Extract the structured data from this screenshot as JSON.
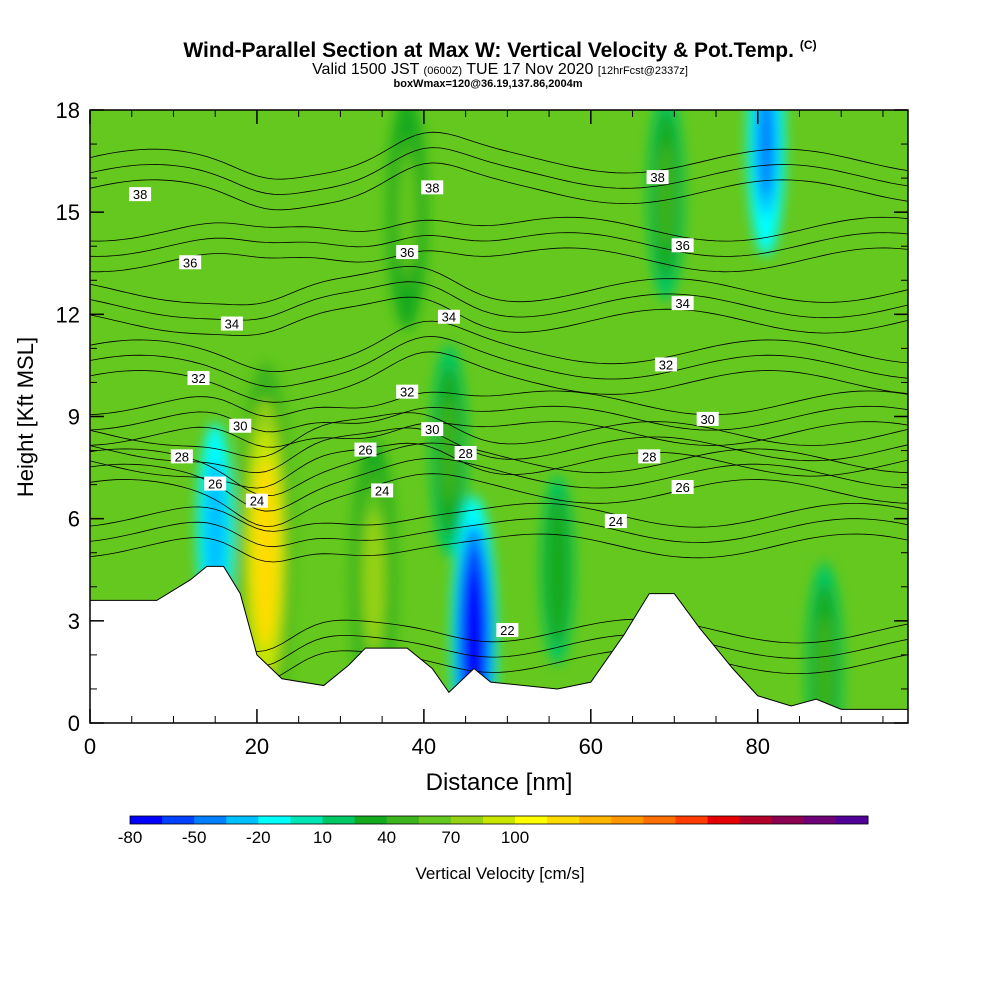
{
  "header": {
    "title": "Wind-Parallel Section at Max W: Vertical Velocity & Pot.Temp.",
    "copyright": "(C)",
    "valid_prefix": "Valid 1500 JST",
    "valid_utc": "(0600Z)",
    "valid_date": "TUE 17 Nov 2020",
    "forecast": "[12hrFcst@2337z]",
    "box_info": "boxWmax=120@36.19,137.86,2004m"
  },
  "chart_data": {
    "type": "heatmap",
    "title": "Wind-Parallel Section at Max W: Vertical Velocity & Pot.Temp.",
    "xlabel": "Distance [nm]",
    "ylabel": "Height [Kft MSL]",
    "xlim": [
      0,
      98
    ],
    "ylim": [
      0,
      18
    ],
    "x_ticks": [
      "0",
      "20",
      "40",
      "60",
      "80"
    ],
    "y_ticks": [
      "0",
      "3",
      "6",
      "9",
      "12",
      "15",
      "18"
    ],
    "colorbar": {
      "label": "Vertical Velocity [cm/s]",
      "tick_labels": [
        "-80",
        "-50",
        "-20",
        "10",
        "40",
        "70",
        "100"
      ],
      "colors": [
        "#0000ff",
        "#0040ff",
        "#0080ff",
        "#00c0ff",
        "#00ffff",
        "#00e6b4",
        "#00c864",
        "#14aa1e",
        "#3cb41e",
        "#64c81e",
        "#96d214",
        "#c8e600",
        "#ffff00",
        "#ffdc00",
        "#ffb400",
        "#ff9600",
        "#ff6e00",
        "#ff3c00",
        "#e60000",
        "#b40028",
        "#8c0050",
        "#6e0078",
        "#500096"
      ]
    },
    "terrain_kft": [
      {
        "x": 0,
        "y": 3.6
      },
      {
        "x": 8,
        "y": 3.6
      },
      {
        "x": 12,
        "y": 4.2
      },
      {
        "x": 14,
        "y": 4.6
      },
      {
        "x": 16,
        "y": 4.6
      },
      {
        "x": 18,
        "y": 3.8
      },
      {
        "x": 20,
        "y": 2.0
      },
      {
        "x": 23,
        "y": 1.3
      },
      {
        "x": 28,
        "y": 1.1
      },
      {
        "x": 31,
        "y": 1.7
      },
      {
        "x": 33,
        "y": 2.2
      },
      {
        "x": 38,
        "y": 2.2
      },
      {
        "x": 41,
        "y": 1.6
      },
      {
        "x": 43,
        "y": 0.9
      },
      {
        "x": 46,
        "y": 1.6
      },
      {
        "x": 48,
        "y": 1.2
      },
      {
        "x": 56,
        "y": 1.0
      },
      {
        "x": 60,
        "y": 1.2
      },
      {
        "x": 64,
        "y": 2.6
      },
      {
        "x": 67,
        "y": 3.8
      },
      {
        "x": 70,
        "y": 3.8
      },
      {
        "x": 73,
        "y": 2.8
      },
      {
        "x": 77,
        "y": 1.6
      },
      {
        "x": 80,
        "y": 0.8
      },
      {
        "x": 84,
        "y": 0.5
      },
      {
        "x": 87,
        "y": 0.7
      },
      {
        "x": 90,
        "y": 0.4
      },
      {
        "x": 98,
        "y": 0.4
      }
    ],
    "velocity_features_cm_s": [
      {
        "x": 21,
        "y": 5.0,
        "value": 115
      },
      {
        "x": 34,
        "y": 4.2,
        "value": 70
      },
      {
        "x": 38,
        "y": 15.0,
        "value": 50
      },
      {
        "x": 46,
        "y": 2.4,
        "value": -75
      },
      {
        "x": 15,
        "y": 5.7,
        "value": -40
      },
      {
        "x": 69,
        "y": 15.5,
        "value": 40
      },
      {
        "x": 81,
        "y": 17.0,
        "value": -45
      },
      {
        "x": 43,
        "y": 8.0,
        "value": 40
      },
      {
        "x": 56,
        "y": 4.5,
        "value": 30
      },
      {
        "x": 88,
        "y": 1.6,
        "value": 40
      }
    ],
    "isentrope_labels": [
      {
        "x": 6,
        "y": 15.5,
        "text": "38"
      },
      {
        "x": 12,
        "y": 13.5,
        "text": "36"
      },
      {
        "x": 17,
        "y": 11.7,
        "text": "34"
      },
      {
        "x": 13,
        "y": 10.1,
        "text": "32"
      },
      {
        "x": 18,
        "y": 8.7,
        "text": "30"
      },
      {
        "x": 11,
        "y": 7.8,
        "text": "28"
      },
      {
        "x": 15,
        "y": 7.0,
        "text": "26"
      },
      {
        "x": 20,
        "y": 6.5,
        "text": "24"
      },
      {
        "x": 41,
        "y": 15.7,
        "text": "38"
      },
      {
        "x": 38,
        "y": 13.8,
        "text": "36"
      },
      {
        "x": 43,
        "y": 11.9,
        "text": "34"
      },
      {
        "x": 38,
        "y": 9.7,
        "text": "32"
      },
      {
        "x": 41,
        "y": 8.6,
        "text": "30"
      },
      {
        "x": 33,
        "y": 8.0,
        "text": "26"
      },
      {
        "x": 35,
        "y": 6.8,
        "text": "24"
      },
      {
        "x": 45,
        "y": 7.9,
        "text": "28"
      },
      {
        "x": 68,
        "y": 16.0,
        "text": "38"
      },
      {
        "x": 71,
        "y": 14.0,
        "text": "36"
      },
      {
        "x": 71,
        "y": 12.3,
        "text": "34"
      },
      {
        "x": 69,
        "y": 10.5,
        "text": "32"
      },
      {
        "x": 74,
        "y": 8.9,
        "text": "30"
      },
      {
        "x": 67,
        "y": 7.8,
        "text": "28"
      },
      {
        "x": 71,
        "y": 6.9,
        "text": "26"
      },
      {
        "x": 63,
        "y": 5.9,
        "text": "24"
      },
      {
        "x": 50,
        "y": 2.7,
        "text": "22"
      }
    ],
    "isentrope_levels": [
      22,
      24,
      26,
      28,
      30,
      32,
      34,
      36,
      38
    ]
  }
}
